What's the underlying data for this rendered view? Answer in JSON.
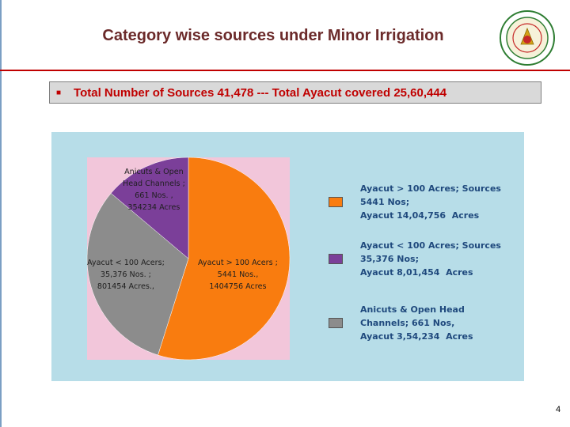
{
  "slide": {
    "title": "Category wise sources under Minor Irrigation",
    "bullet": "Total Number of Sources 41,478 --- Total Ayacut covered 25,60,444",
    "page_number": "4"
  },
  "chart_data": {
    "type": "pie",
    "slices": [
      {
        "label": "Ayacut > 100 Acers ;\n5441 Nos.,\n1404756 Acres",
        "value": 1404756,
        "color": "#f97c0f",
        "legend": "Ayacut > 100 Acres; Sources\n5441 Nos;\nAyacut 14,04,756  Acres"
      },
      {
        "label": "Ayacut < 100 Acers;\n35,376 Nos. ;\n801454 Acres.,",
        "value": 801454,
        "color": "#8c8c8c",
        "legend": "Ayacut < 100 Acres; Sources\n35,376 Nos;\nAyacut 8,01,454  Acres"
      },
      {
        "label": "Anicuts & Open\nHead Channels ;\n661 Nos. ,\n354234 Acres",
        "value": 354234,
        "color": "#7b3f99",
        "legend": "Anicuts & Open Head\nChannels; 661 Nos,\nAyacut 3,54,234  Acres"
      }
    ],
    "legend_placement": "right",
    "legend_order": [
      0,
      2,
      1
    ],
    "legend_swatch_colors": [
      "#f97c0f",
      "#7b3f99",
      "#8c8c8c"
    ]
  }
}
